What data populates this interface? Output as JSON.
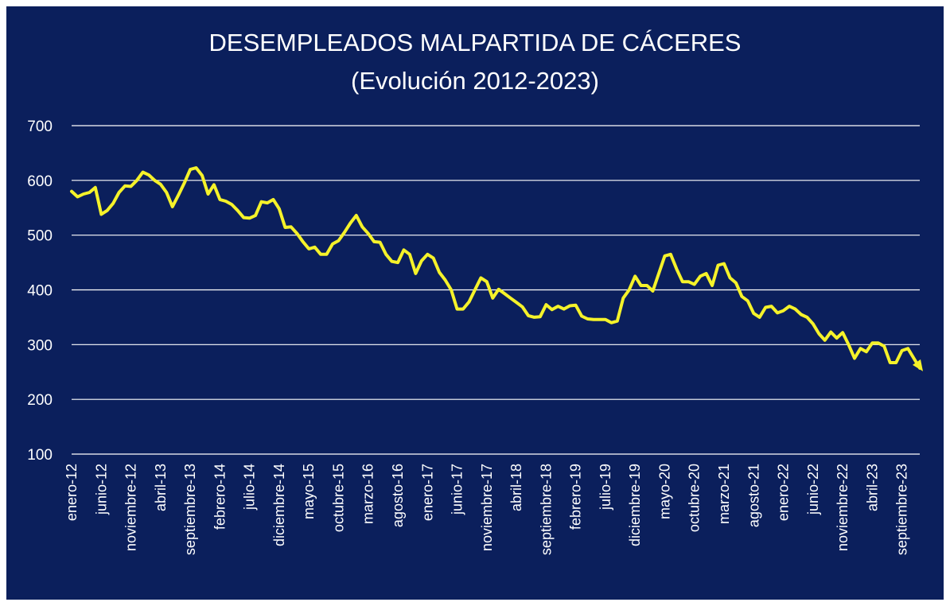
{
  "colors": {
    "background": "#0b1f5c",
    "line": "#f5f22a",
    "grid": "#ffffff",
    "text": "#ffffff"
  },
  "chart_data": {
    "type": "line",
    "title": "DESEMPLEADOS MALPARTIDA DE CÁCERES",
    "subtitle": "(Evolución 2012-2023)",
    "xlabel": "",
    "ylabel": "",
    "ylim": [
      100,
      700
    ],
    "yticks": [
      100,
      200,
      300,
      400,
      500,
      600,
      700
    ],
    "grid": true,
    "legend": "none",
    "xtick_labels": [
      "enero-12",
      "junio-12",
      "noviembre-12",
      "abril-13",
      "septiembre-13",
      "febrero-14",
      "julio-14",
      "diciembre-14",
      "mayo-15",
      "octubre-15",
      "marzo-16",
      "agosto-16",
      "enero-17",
      "junio-17",
      "noviembre-17",
      "abril-18",
      "septiembre-18",
      "febrero-19",
      "julio-19",
      "diciembre-19",
      "mayo-20",
      "octubre-20",
      "marzo-21",
      "agosto-21",
      "enero-22",
      "junio-22",
      "noviembre-22",
      "abril-23",
      "septiembre-23"
    ],
    "x_start": "enero-12",
    "x_frequency": "monthly",
    "series": [
      {
        "values": [
          580,
          570,
          575,
          578,
          587,
          538,
          545,
          558,
          578,
          590,
          589,
          600,
          615,
          610,
          600,
          593,
          578,
          552,
          573,
          595,
          620,
          623,
          609,
          575,
          592,
          565,
          562,
          556,
          545,
          532,
          531,
          536,
          561,
          559,
          565,
          548,
          514,
          515,
          503,
          488,
          475,
          478,
          465,
          465,
          484,
          490,
          505,
          522,
          536,
          515,
          503,
          488,
          487,
          465,
          452,
          450,
          473,
          465,
          430,
          453,
          465,
          458,
          432,
          418,
          400,
          365,
          365,
          378,
          400,
          422,
          415,
          385,
          401,
          393,
          385,
          377,
          369,
          353,
          350,
          351,
          373,
          364,
          370,
          365,
          371,
          372,
          352,
          347,
          346,
          346,
          346,
          340,
          343,
          385,
          400,
          425,
          408,
          408,
          398,
          430,
          462,
          465,
          438,
          415,
          415,
          410,
          425,
          430,
          408,
          445,
          448,
          422,
          413,
          388,
          380,
          357,
          350,
          368,
          370,
          358,
          362,
          370,
          365,
          355,
          350,
          338,
          320,
          308,
          323,
          312,
          322,
          300,
          275,
          293,
          287,
          303,
          303,
          297,
          267,
          267,
          289,
          293,
          275,
          257
        ]
      }
    ]
  }
}
